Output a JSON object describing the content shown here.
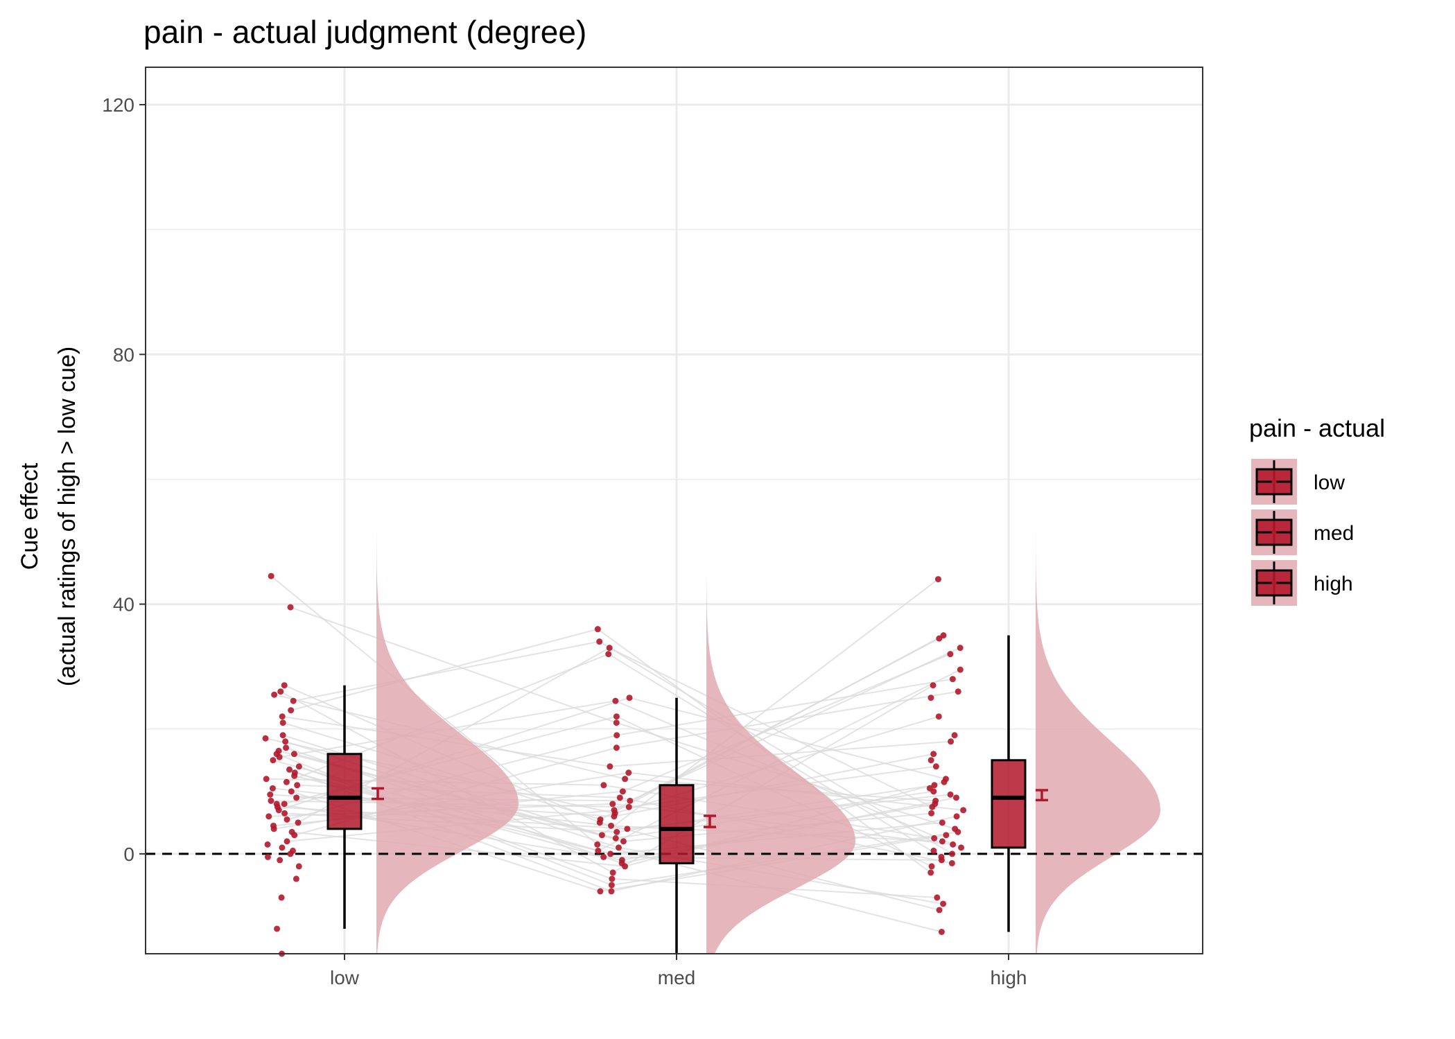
{
  "chart_data": {
    "type": "raincloud",
    "title": "pain  - actual judgment (degree)",
    "xlabel": "",
    "ylabel_line1": "Cue effect",
    "ylabel_line2": "(actual ratings of high > low cue)",
    "ylim": [
      -16,
      126
    ],
    "yticks": [
      0,
      40,
      80,
      120
    ],
    "categories": [
      "low",
      "med",
      "high"
    ],
    "legend": {
      "title": "pain  - actual",
      "items": [
        "low",
        "med",
        "high"
      ],
      "position": "right"
    },
    "reference_line": {
      "y": 0,
      "style": "dashed"
    },
    "box_stats": [
      {
        "category": "low",
        "whisker_low": -12,
        "q1": 4,
        "median": 9,
        "q3": 16,
        "whisker_high": 27,
        "mean": 9.6,
        "se_low": 8.8,
        "se_high": 10.5
      },
      {
        "category": "med",
        "whisker_low": -16,
        "q1": -1.5,
        "median": 4,
        "q3": 11,
        "whisker_high": 25,
        "mean": 5.2,
        "se_low": 4.3,
        "se_high": 6.1
      },
      {
        "category": "high",
        "whisker_low": -12.5,
        "q1": 1,
        "median": 9,
        "q3": 15,
        "whisker_high": 35,
        "mean": 9.4,
        "se_low": 8.6,
        "se_high": 10.2
      }
    ],
    "density_peaks": [
      {
        "category": "low",
        "mode": 8,
        "max": 54
      },
      {
        "category": "med",
        "mode": 2,
        "max": 46
      },
      {
        "category": "high",
        "mode": 7,
        "max": 56
      }
    ],
    "points": {
      "low": [
        44.5,
        39.5,
        27,
        26,
        25.5,
        24.5,
        23,
        22,
        21,
        19,
        18.5,
        18,
        17,
        16.5,
        16,
        16,
        15.5,
        15,
        14,
        13.5,
        13,
        12.5,
        12,
        11.5,
        11,
        10.5,
        10,
        9.5,
        9,
        8.5,
        8,
        8,
        7.5,
        7,
        6.5,
        6,
        5.5,
        5,
        4.5,
        4,
        3.5,
        3,
        2,
        1.5,
        1,
        0.5,
        0,
        -0.5,
        -1,
        -2,
        -4,
        -7,
        -12,
        -16
      ],
      "med": [
        36,
        34,
        33,
        32,
        25,
        24.5,
        22,
        21,
        19,
        17,
        14,
        13,
        12,
        11,
        10,
        9,
        8.5,
        8,
        7.5,
        7,
        6.5,
        6,
        5.5,
        5,
        4.5,
        4,
        3.5,
        3,
        2.5,
        2,
        1.5,
        1,
        0.5,
        0,
        -0.5,
        -1,
        -1.5,
        -2,
        -3,
        -4,
        -5,
        -6,
        -6
      ],
      "high": [
        44,
        35,
        34.5,
        33,
        32,
        29.5,
        28,
        27,
        26,
        25,
        22,
        19,
        18,
        16,
        15,
        14,
        12,
        11.5,
        11,
        10.5,
        10,
        9.5,
        9,
        8.5,
        8,
        7.5,
        7,
        6.5,
        6,
        5,
        4,
        3.5,
        3,
        2.5,
        2,
        1.5,
        1,
        0.5,
        0,
        -0.5,
        -1,
        -1.5,
        -2,
        -3,
        -7,
        -8,
        -9,
        -12.5
      ]
    }
  },
  "colors": {
    "fill": "#b2182b",
    "point": "#b2182b",
    "density": "#e2a9b2",
    "line": "#d9d9d9",
    "grid": "#ebebeb",
    "border": "#333333"
  }
}
